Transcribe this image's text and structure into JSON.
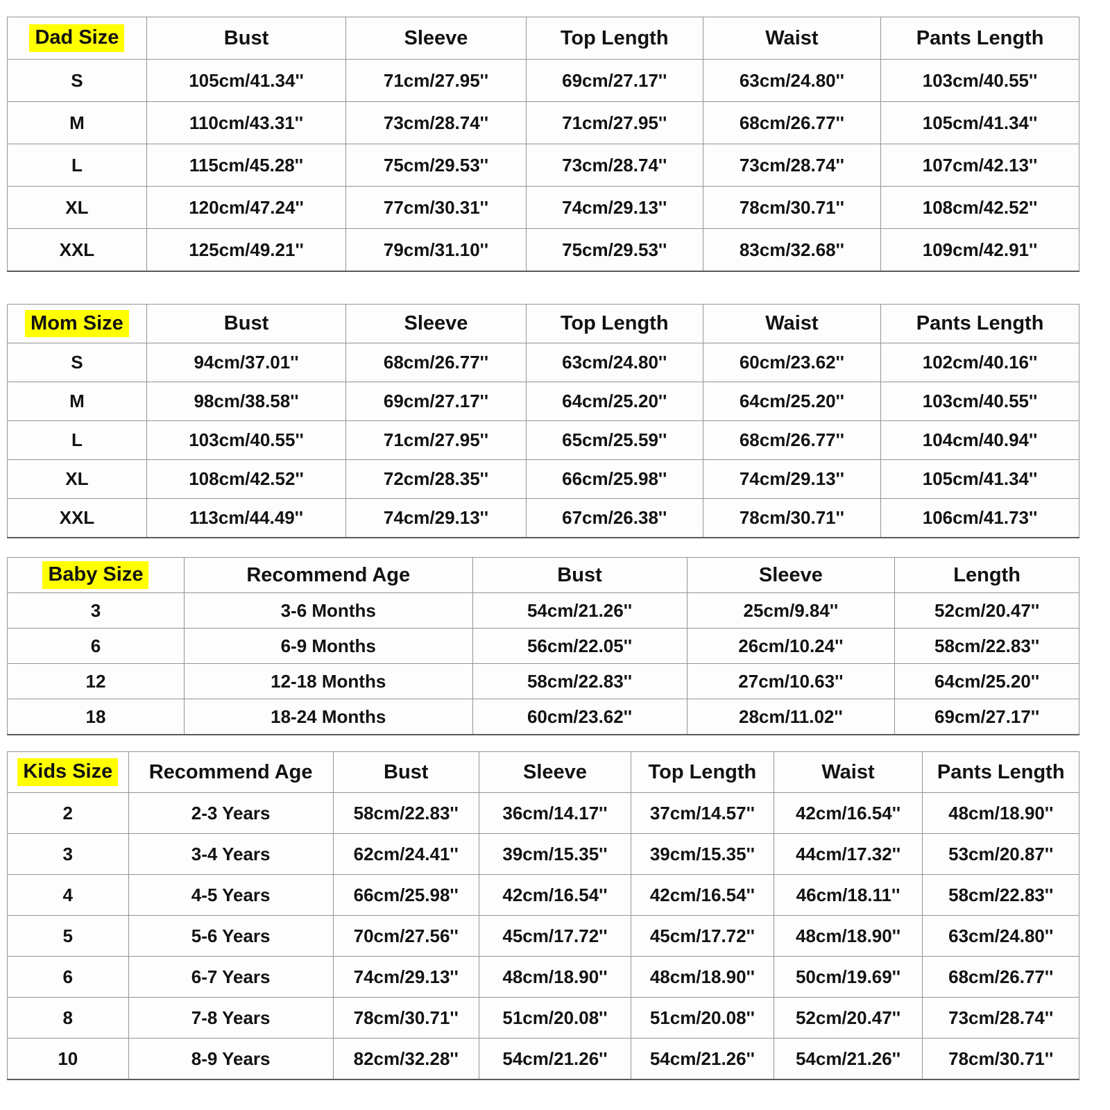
{
  "highlight_color": "#ffff00",
  "tables": [
    {
      "label": "Dad Size",
      "columns": [
        "Bust",
        "Sleeve",
        "Top Length",
        "Waist",
        "Pants Length"
      ],
      "rows": [
        [
          "S",
          "105cm/41.34''",
          "71cm/27.95''",
          "69cm/27.17''",
          "63cm/24.80''",
          "103cm/40.55''"
        ],
        [
          "M",
          "110cm/43.31''",
          "73cm/28.74''",
          "71cm/27.95''",
          "68cm/26.77''",
          "105cm/41.34''"
        ],
        [
          "L",
          "115cm/45.28''",
          "75cm/29.53''",
          "73cm/28.74''",
          "73cm/28.74''",
          "107cm/42.13''"
        ],
        [
          "XL",
          "120cm/47.24''",
          "77cm/30.31''",
          "74cm/29.13''",
          "78cm/30.71''",
          "108cm/42.52''"
        ],
        [
          "XXL",
          "125cm/49.21''",
          "79cm/31.10''",
          "75cm/29.53''",
          "83cm/32.68''",
          "109cm/42.91''"
        ]
      ]
    },
    {
      "label": "Mom Size",
      "columns": [
        "Bust",
        "Sleeve",
        "Top Length",
        "Waist",
        "Pants Length"
      ],
      "rows": [
        [
          "S",
          "94cm/37.01''",
          "68cm/26.77''",
          "63cm/24.80''",
          "60cm/23.62''",
          "102cm/40.16''"
        ],
        [
          "M",
          "98cm/38.58''",
          "69cm/27.17''",
          "64cm/25.20''",
          "64cm/25.20''",
          "103cm/40.55''"
        ],
        [
          "L",
          "103cm/40.55''",
          "71cm/27.95''",
          "65cm/25.59''",
          "68cm/26.77''",
          "104cm/40.94''"
        ],
        [
          "XL",
          "108cm/42.52''",
          "72cm/28.35''",
          "66cm/25.98''",
          "74cm/29.13''",
          "105cm/41.34''"
        ],
        [
          "XXL",
          "113cm/44.49''",
          "74cm/29.13''",
          "67cm/26.38''",
          "78cm/30.71''",
          "106cm/41.73''"
        ]
      ]
    },
    {
      "label": "Baby Size",
      "columns": [
        "Recommend Age",
        "Bust",
        "Sleeve",
        "Length"
      ],
      "rows": [
        [
          "3",
          "3-6 Months",
          "54cm/21.26''",
          "25cm/9.84''",
          "52cm/20.47''"
        ],
        [
          "6",
          "6-9 Months",
          "56cm/22.05''",
          "26cm/10.24''",
          "58cm/22.83''"
        ],
        [
          "12",
          "12-18 Months",
          "58cm/22.83''",
          "27cm/10.63''",
          "64cm/25.20''"
        ],
        [
          "18",
          "18-24 Months",
          "60cm/23.62''",
          "28cm/11.02''",
          "69cm/27.17''"
        ]
      ]
    },
    {
      "label": "Kids Size",
      "columns": [
        "Recommend Age",
        "Bust",
        "Sleeve",
        "Top Length",
        "Waist",
        "Pants Length"
      ],
      "rows": [
        [
          "2",
          "2-3 Years",
          "58cm/22.83''",
          "36cm/14.17''",
          "37cm/14.57''",
          "42cm/16.54''",
          "48cm/18.90''"
        ],
        [
          "3",
          "3-4 Years",
          "62cm/24.41''",
          "39cm/15.35''",
          "39cm/15.35''",
          "44cm/17.32''",
          "53cm/20.87''"
        ],
        [
          "4",
          "4-5 Years",
          "66cm/25.98''",
          "42cm/16.54''",
          "42cm/16.54''",
          "46cm/18.11''",
          "58cm/22.83''"
        ],
        [
          "5",
          "5-6 Years",
          "70cm/27.56''",
          "45cm/17.72''",
          "45cm/17.72''",
          "48cm/18.90''",
          "63cm/24.80''"
        ],
        [
          "6",
          "6-7 Years",
          "74cm/29.13''",
          "48cm/18.90''",
          "48cm/18.90''",
          "50cm/19.69''",
          "68cm/26.77''"
        ],
        [
          "8",
          "7-8 Years",
          "78cm/30.71''",
          "51cm/20.08''",
          "51cm/20.08''",
          "52cm/20.47''",
          "73cm/28.74''"
        ],
        [
          "10",
          "8-9 Years",
          "82cm/32.28''",
          "54cm/21.26''",
          "54cm/21.26''",
          "54cm/21.26''",
          "78cm/30.71''"
        ]
      ]
    }
  ]
}
